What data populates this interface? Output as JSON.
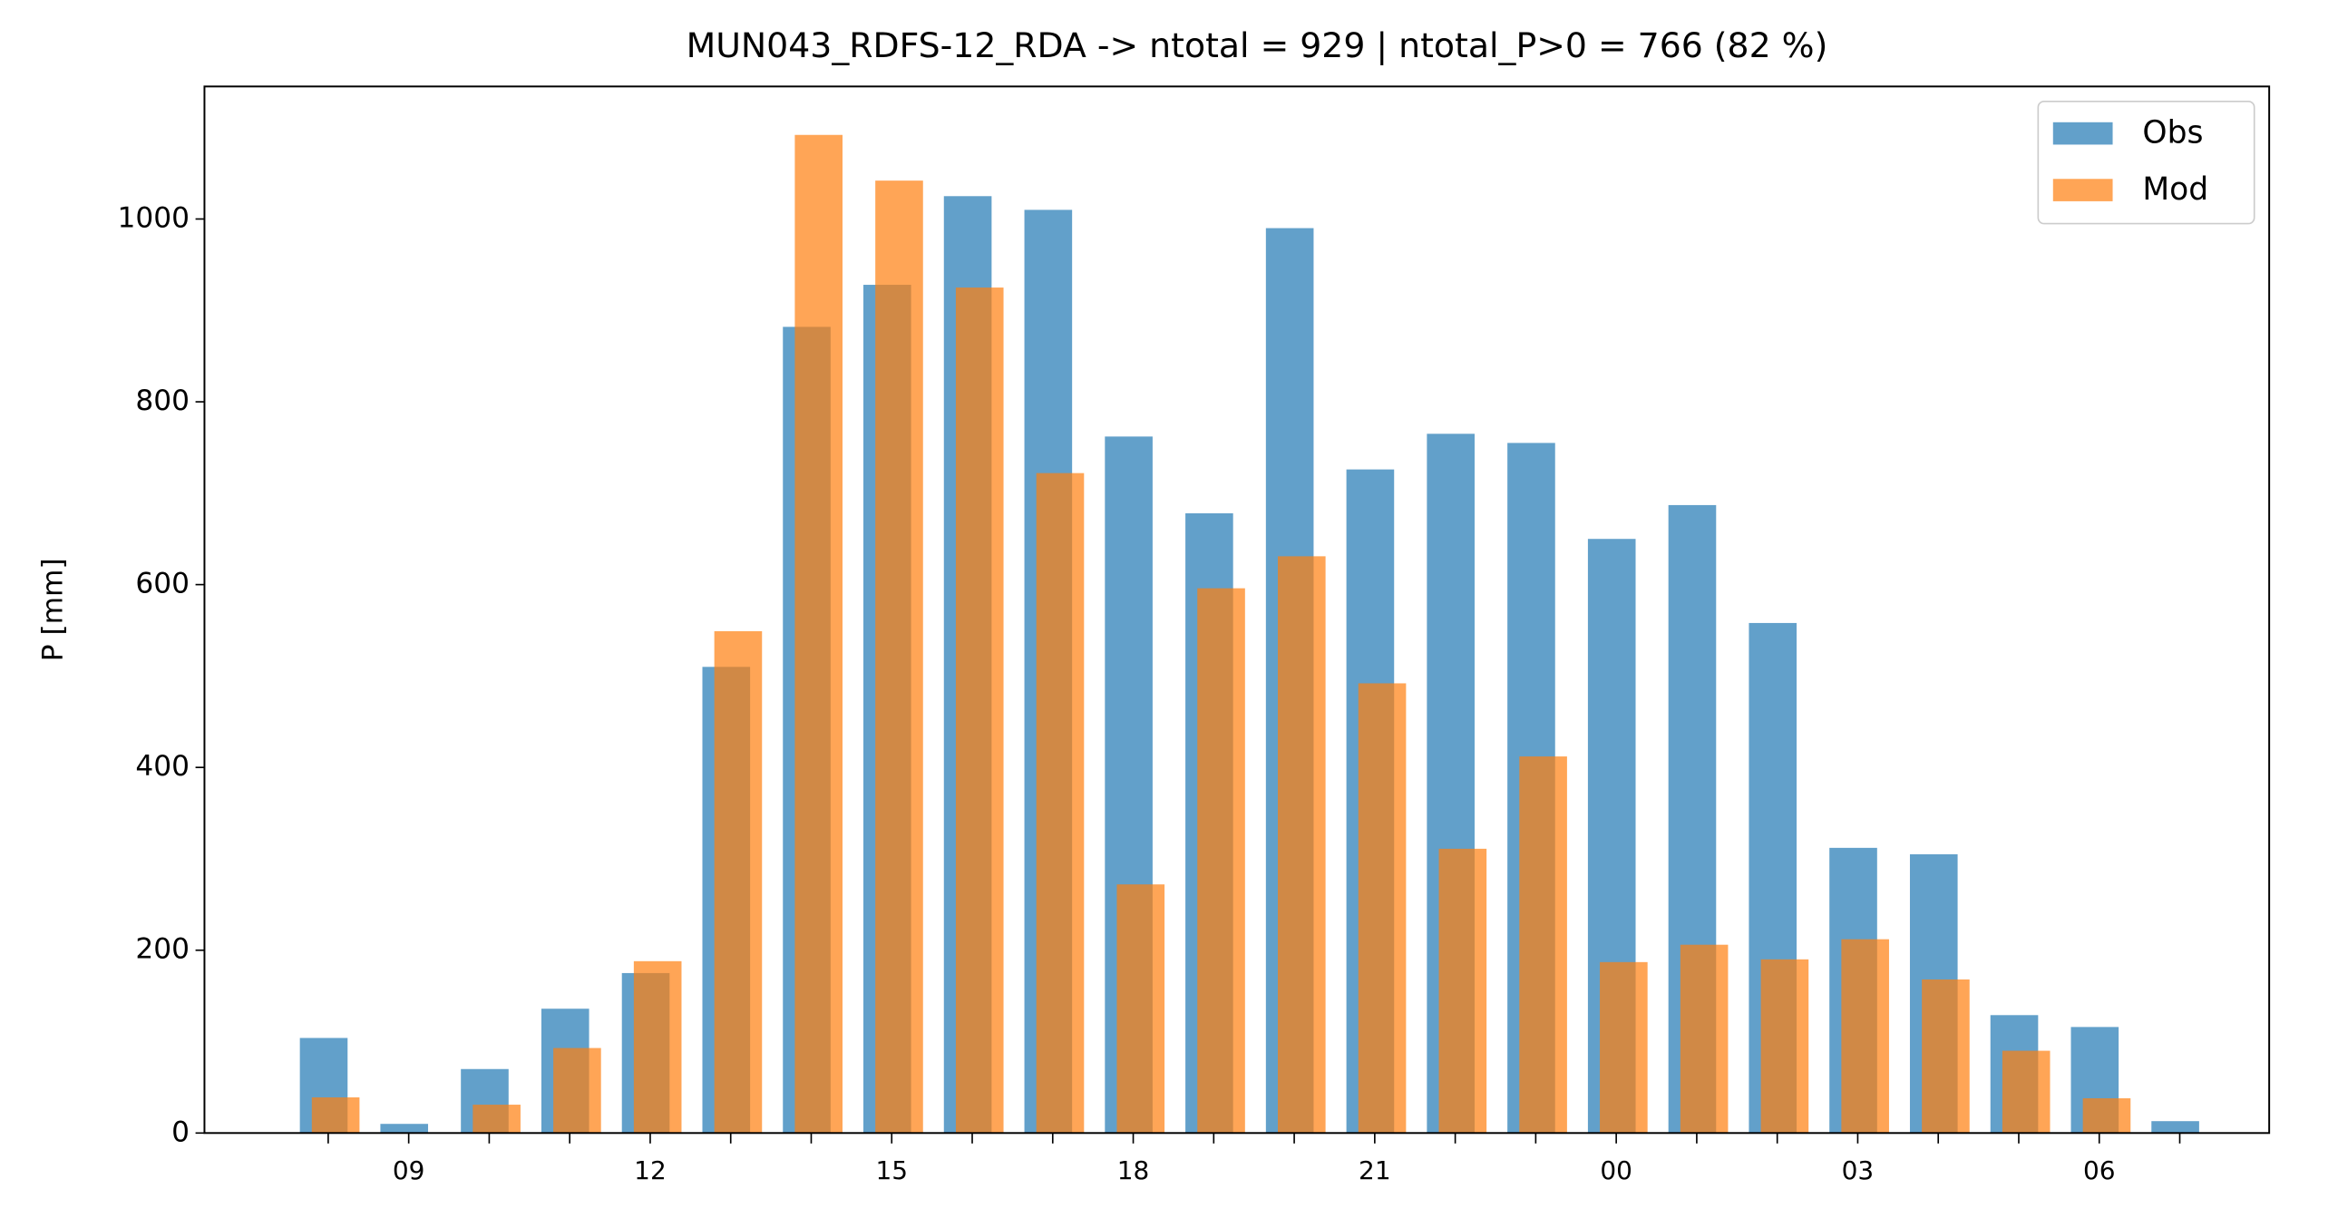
{
  "chart_data": {
    "type": "bar",
    "title": "MUN043_RDFS-12_RDA -> ntotal = 929 | ntotal_P>0 = 766 (82 %)",
    "ylabel": "P [mm]",
    "categories": [
      null,
      "09",
      null,
      null,
      "12",
      null,
      null,
      "15",
      null,
      null,
      "18",
      null,
      null,
      "21",
      null,
      null,
      "00",
      null,
      null,
      "03",
      null,
      null,
      "06",
      null
    ],
    "series": [
      {
        "name": "Obs",
        "color": "#1f77b4",
        "values": [
          104,
          10,
          70,
          136,
          175,
          510,
          882,
          928,
          1025,
          1010,
          762,
          678,
          990,
          726,
          765,
          755,
          650,
          687,
          558,
          312,
          305,
          129,
          116,
          13
        ]
      },
      {
        "name": "Mod",
        "color": "#ff7f0e",
        "values": [
          39,
          0,
          31,
          93,
          188,
          549,
          1092,
          1042,
          925,
          722,
          272,
          596,
          631,
          492,
          311,
          412,
          187,
          206,
          190,
          212,
          168,
          90,
          38,
          0
        ]
      }
    ],
    "ylim": [
      0,
      1145
    ],
    "yticks": [
      0,
      200,
      400,
      600,
      800,
      1000
    ],
    "legend": "upper right",
    "opacity": 0.7
  }
}
